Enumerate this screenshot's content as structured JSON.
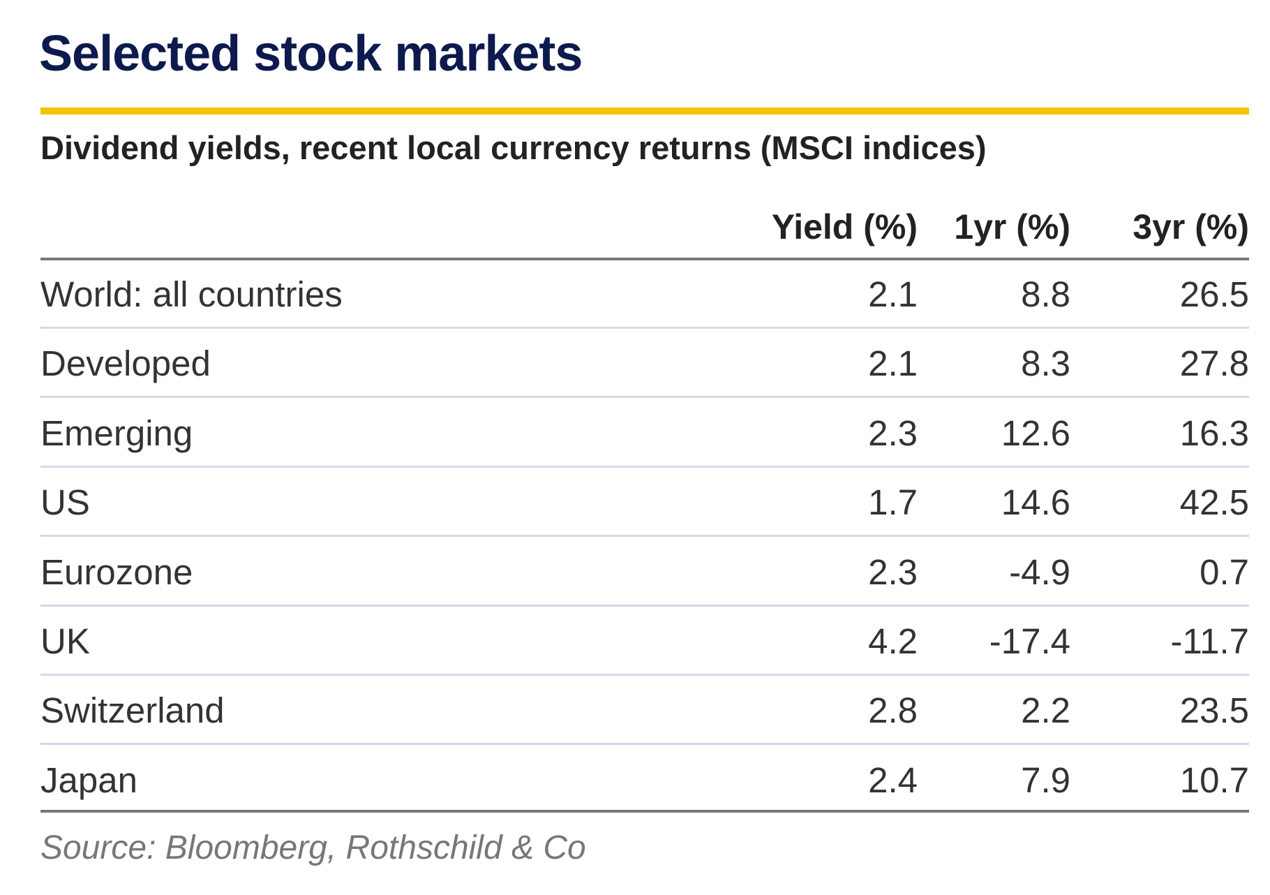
{
  "header": {
    "title": "Selected stock markets",
    "subtitle": "Dividend yields, recent local currency returns (MSCI indices)"
  },
  "table": {
    "columns": [
      "Yield (%)",
      "1yr (%)",
      "3yr (%)"
    ],
    "rows": [
      [
        "World: all countries",
        "2.1",
        "8.8",
        "26.5"
      ],
      [
        "Developed",
        "2.1",
        "8.3",
        "27.8"
      ],
      [
        "Emerging",
        "2.3",
        "12.6",
        "16.3"
      ],
      [
        "US",
        "1.7",
        "14.6",
        "42.5"
      ],
      [
        "Eurozone",
        "2.3",
        "-4.9",
        "0.7"
      ],
      [
        "UK",
        "4.2",
        "-17.4",
        "-11.7"
      ],
      [
        "Switzerland",
        "2.8",
        "2.2",
        "23.5"
      ],
      [
        "Japan",
        "2.4",
        "7.9",
        "10.7"
      ]
    ]
  },
  "footer": {
    "source": "Source: Bloomberg, Rothschild & Co"
  }
}
